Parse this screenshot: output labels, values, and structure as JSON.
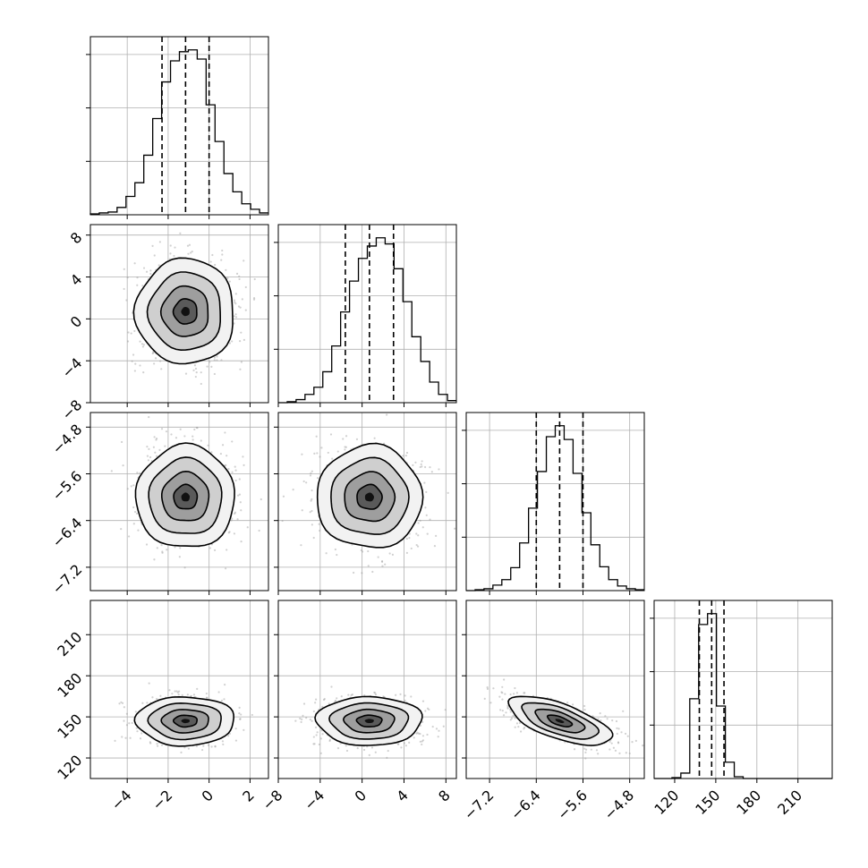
{
  "chart_data": {
    "type": "corner",
    "title": "",
    "style": {
      "grid": true,
      "axis_color": "#000000",
      "grid_color": "#b0b0b0",
      "density_colormap": "greys",
      "contour_color": "#000000",
      "quantile_line": "dashed"
    },
    "parameters": [
      {
        "index": 0,
        "range": [
          -5.8,
          2.9
        ],
        "ticks": [
          -4,
          -2,
          0,
          2
        ],
        "tick_labels": [
          "−4",
          "−2",
          "0",
          "2"
        ],
        "quantiles": [
          -2.3,
          -1.15,
          0.0
        ],
        "histogram": {
          "bin_start": -5.8,
          "bin_width": 0.435,
          "counts": [
            1,
            2,
            3,
            8,
            20,
            35,
            65,
            105,
            145,
            168,
            178,
            180,
            170,
            120,
            80,
            45,
            25,
            12,
            6,
            2
          ]
        }
      },
      {
        "index": 1,
        "range": [
          -8,
          9
        ],
        "ticks": [
          -8,
          -4,
          0,
          4,
          8
        ],
        "tick_labels": [
          "−8",
          "−4",
          "0",
          "4",
          "8"
        ],
        "quantiles": [
          -1.6,
          0.7,
          3.0
        ],
        "histogram": {
          "bin_start": -8,
          "bin_width": 0.85,
          "counts": [
            0,
            1,
            3,
            8,
            15,
            30,
            55,
            88,
            118,
            140,
            152,
            160,
            154,
            130,
            98,
            64,
            40,
            20,
            8,
            2
          ]
        }
      },
      {
        "index": 2,
        "range": [
          -7.6,
          -4.55
        ],
        "ticks": [
          -7.2,
          -6.4,
          -5.6,
          -4.8
        ],
        "tick_labels": [
          "−7.2",
          "−6.4",
          "−5.6",
          "−4.8"
        ],
        "quantiles": [
          -6.4,
          -6.0,
          -5.6
        ],
        "histogram": {
          "bin_start": -7.6,
          "bin_width": 0.1525,
          "counts": [
            0,
            1,
            2,
            6,
            12,
            25,
            52,
            90,
            130,
            168,
            180,
            165,
            128,
            85,
            50,
            26,
            12,
            5,
            2,
            1
          ]
        }
      },
      {
        "index": 3,
        "range": [
          105,
          235
        ],
        "ticks": [
          120,
          150,
          180,
          210
        ],
        "tick_labels": [
          "120",
          "150",
          "180",
          "210"
        ],
        "quantiles": [
          138,
          147,
          156
        ],
        "histogram": {
          "bin_start": 105,
          "bin_width": 6.5,
          "counts": [
            0,
            0,
            1,
            6,
            88,
            170,
            182,
            80,
            18,
            2,
            0,
            0,
            0,
            0,
            0,
            0,
            0,
            0,
            0,
            0
          ]
        }
      }
    ],
    "pairs": [
      {
        "x_param": 0,
        "y_param": 1,
        "center": [
          -1.15,
          0.7
        ],
        "sd": [
          1.15,
          2.4
        ],
        "rho": 0.0,
        "n_points": 900
      },
      {
        "x_param": 0,
        "y_param": 2,
        "center": [
          -1.15,
          -6.0
        ],
        "sd": [
          1.15,
          0.42
        ],
        "rho": 0.0,
        "n_points": 900
      },
      {
        "x_param": 1,
        "y_param": 2,
        "center": [
          0.7,
          -6.0
        ],
        "sd": [
          2.4,
          0.42
        ],
        "rho": 0.0,
        "n_points": 900
      },
      {
        "x_param": 0,
        "y_param": 3,
        "center": [
          -1.15,
          147
        ],
        "sd": [
          1.15,
          8.5
        ],
        "rho": 0.0,
        "n_points": 900
      },
      {
        "x_param": 1,
        "y_param": 3,
        "center": [
          0.7,
          147
        ],
        "sd": [
          2.4,
          8.5
        ],
        "rho": 0.0,
        "n_points": 900
      },
      {
        "x_param": 2,
        "y_param": 3,
        "center": [
          -6.0,
          147
        ],
        "sd": [
          0.42,
          8.5
        ],
        "rho": -0.65,
        "n_points": 900
      }
    ]
  }
}
